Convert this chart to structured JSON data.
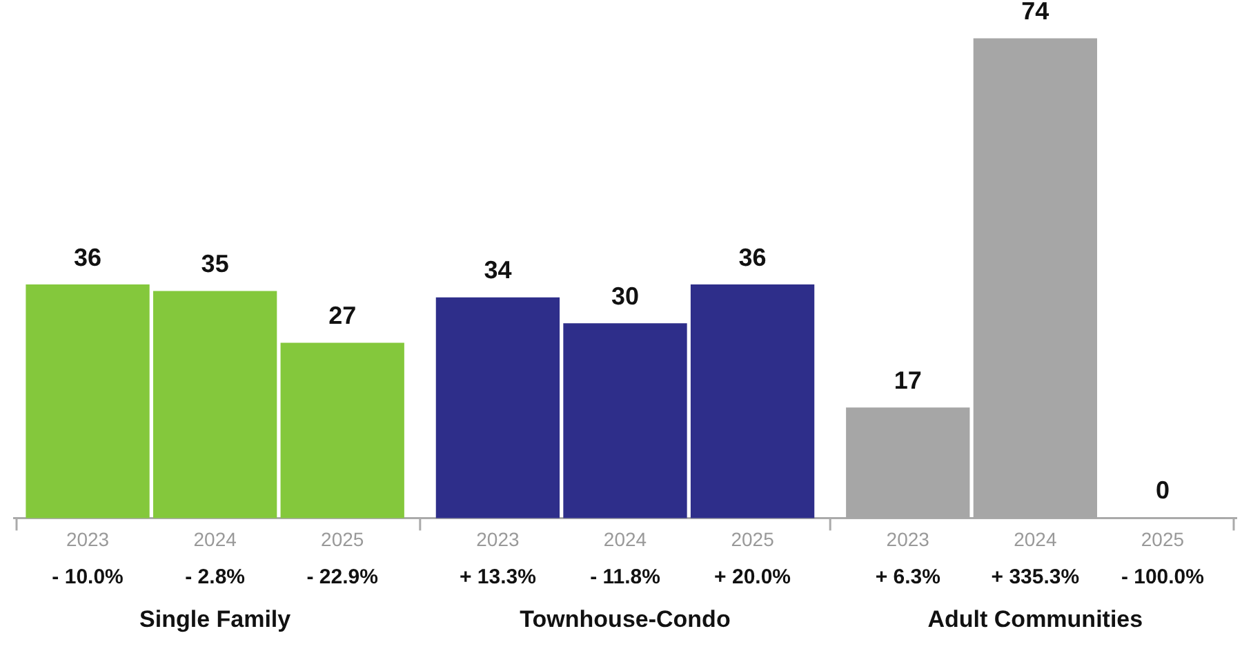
{
  "chart_data": {
    "type": "bar",
    "categories": [
      "2023",
      "2024",
      "2025",
      "2023",
      "2024",
      "2025",
      "2023",
      "2024",
      "2025"
    ],
    "values": [
      36,
      35,
      27,
      34,
      30,
      36,
      17,
      74,
      0
    ],
    "colors": [
      "#84c83c",
      "#84c83c",
      "#84c83c",
      "#2e2e8a",
      "#2e2e8a",
      "#2e2e8a",
      "#a6a6a6",
      "#a6a6a6",
      "#a6a6a6"
    ],
    "data_labels": true,
    "grid": false,
    "legend": false,
    "annotations": [
      "- 10.0%",
      "- 2.8%",
      "- 22.9%",
      "+ 13.3%",
      "- 11.8%",
      "+ 20.0%",
      "+ 6.3%",
      "+ 335.3%",
      "- 100.0%",
      "Single Family",
      "Townhouse-Condo",
      "Adult Communities"
    ]
  }
}
